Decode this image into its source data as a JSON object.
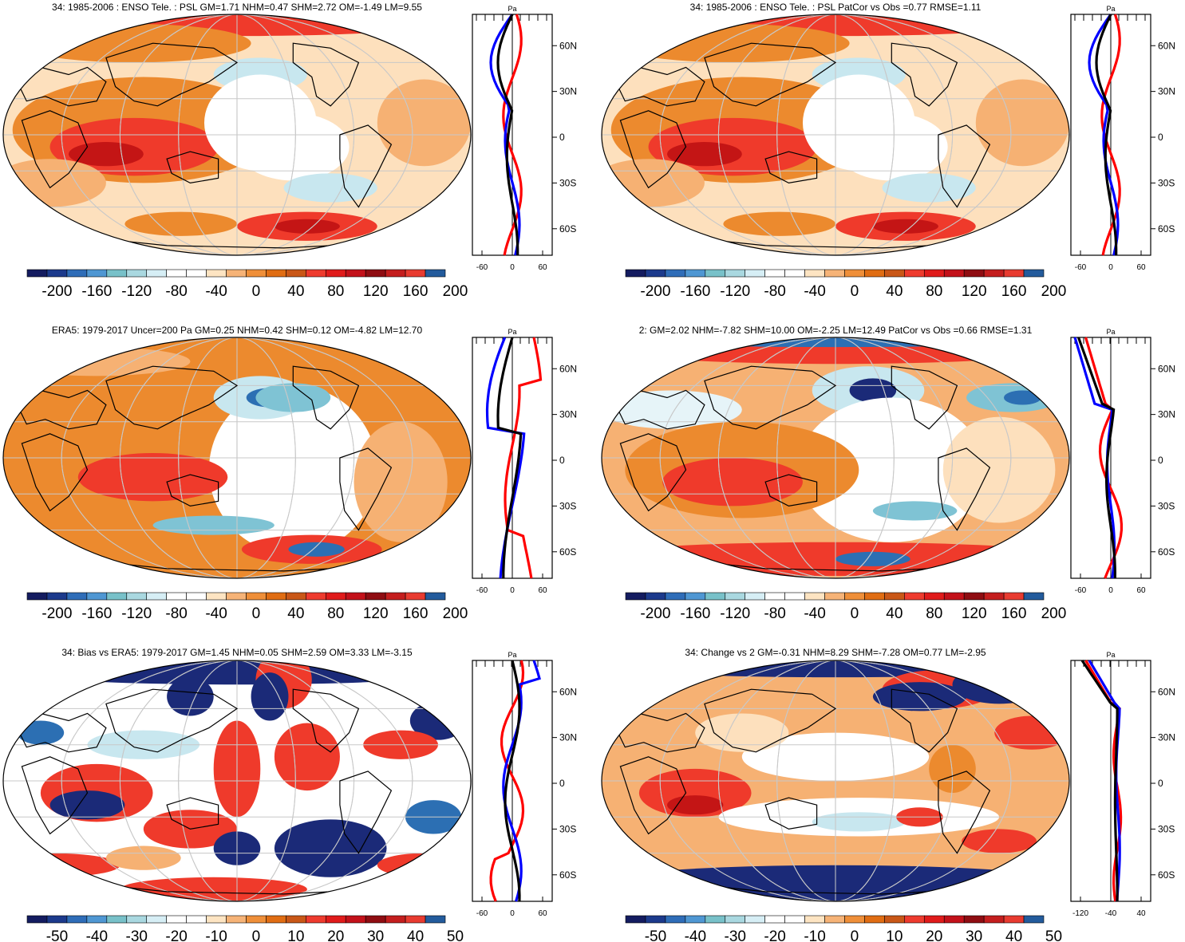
{
  "colors": {
    "palette_anomaly": [
      "#141c60",
      "#1c3a8c",
      "#2f6db8",
      "#4f97d3",
      "#78c1c9",
      "#a9d8e0",
      "#d6eef5",
      "#ffffff",
      "#ffffff",
      "#fde4c2",
      "#f6b377",
      "#ef8f39",
      "#e06d13",
      "#c95717",
      "#ee3b2e",
      "#e01b1b",
      "#c3111a",
      "#8f0d12",
      "#c41e1e",
      "#e83b30",
      "#235b9c"
    ],
    "series_model": "#ff0000",
    "series_obs": "#0000ff",
    "series_ens": "#000000",
    "graticule": "#c8c8c8",
    "coast": "#000000"
  },
  "panels": [
    {
      "id": "p1",
      "title": "34: 1985-2006 : ENSO Tele. : PSL GM=1.71 NHM=0.47 SHM=2.72 OM=-1.49 LM=9.55",
      "colorbar_labels": [
        "-200",
        "-160",
        "-120",
        "-80",
        "-40",
        "0",
        "40",
        "80",
        "120",
        "160",
        "200"
      ],
      "profile": {
        "unit": "Pa",
        "y_ticks": [
          "60N",
          "30N",
          "0",
          "30S",
          "60S"
        ],
        "x_ticks": [
          "-60",
          "0",
          "60"
        ]
      }
    },
    {
      "id": "p2",
      "title": "34: 1985-2006 : ENSO Tele. : PSL PatCor vs Obs =0.77 RMSE=1.11",
      "colorbar_labels": [
        "-200",
        "-160",
        "-120",
        "-80",
        "-40",
        "0",
        "40",
        "80",
        "120",
        "160",
        "200"
      ],
      "profile": {
        "unit": "Pa",
        "y_ticks": [
          "60N",
          "30N",
          "0",
          "30S",
          "60S"
        ],
        "x_ticks": [
          "-60",
          "0",
          "60"
        ]
      }
    },
    {
      "id": "p3",
      "title": "ERA5: 1979-2017 Uncer=200 Pa GM=0.25 NHM=0.42 SHM=0.12 OM=-4.82 LM=12.70",
      "colorbar_labels": [
        "-200",
        "-160",
        "-120",
        "-80",
        "-40",
        "0",
        "40",
        "80",
        "120",
        "160",
        "200"
      ],
      "profile": {
        "unit": "Pa",
        "y_ticks": [
          "60N",
          "30N",
          "0",
          "30S",
          "60S"
        ],
        "x_ticks": [
          "-60",
          "0",
          "60"
        ]
      }
    },
    {
      "id": "p4",
      "title": "2: GM=2.02 NHM=-7.82 SHM=10.00 OM=-2.25 LM=12.49 PatCor vs Obs =0.66 RMSE=1.31",
      "colorbar_labels": [
        "-200",
        "-160",
        "-120",
        "-80",
        "-40",
        "0",
        "40",
        "80",
        "120",
        "160",
        "200"
      ],
      "profile": {
        "unit": "Pa",
        "y_ticks": [
          "60N",
          "30N",
          "0",
          "30S",
          "60S"
        ],
        "x_ticks": [
          "-60",
          "0",
          "60"
        ]
      }
    },
    {
      "id": "p5",
      "title": "34: Bias vs ERA5: 1979-2017 GM=1.45 NHM=0.05 SHM=2.59 OM=3.33 LM=-3.15",
      "colorbar_labels": [
        "-50",
        "-40",
        "-30",
        "-20",
        "-10",
        "0",
        "10",
        "20",
        "30",
        "40",
        "50"
      ],
      "profile": {
        "unit": "Pa",
        "y_ticks": [
          "60N",
          "30N",
          "0",
          "30S",
          "60S"
        ],
        "x_ticks": [
          "-60",
          "0",
          "60"
        ]
      }
    },
    {
      "id": "p6",
      "title": "34: Change vs 2 GM=-0.31 NHM=8.29 SHM=-7.28 OM=0.77 LM=-2.95",
      "colorbar_labels": [
        "-50",
        "-40",
        "-30",
        "-20",
        "-10",
        "0",
        "10",
        "20",
        "30",
        "40",
        "50"
      ],
      "profile": {
        "unit": "Pa",
        "y_ticks": [
          "60N",
          "30N",
          "0",
          "30S",
          "60S"
        ],
        "x_ticks": [
          "-120",
          "-40",
          "40"
        ]
      }
    }
  ]
}
